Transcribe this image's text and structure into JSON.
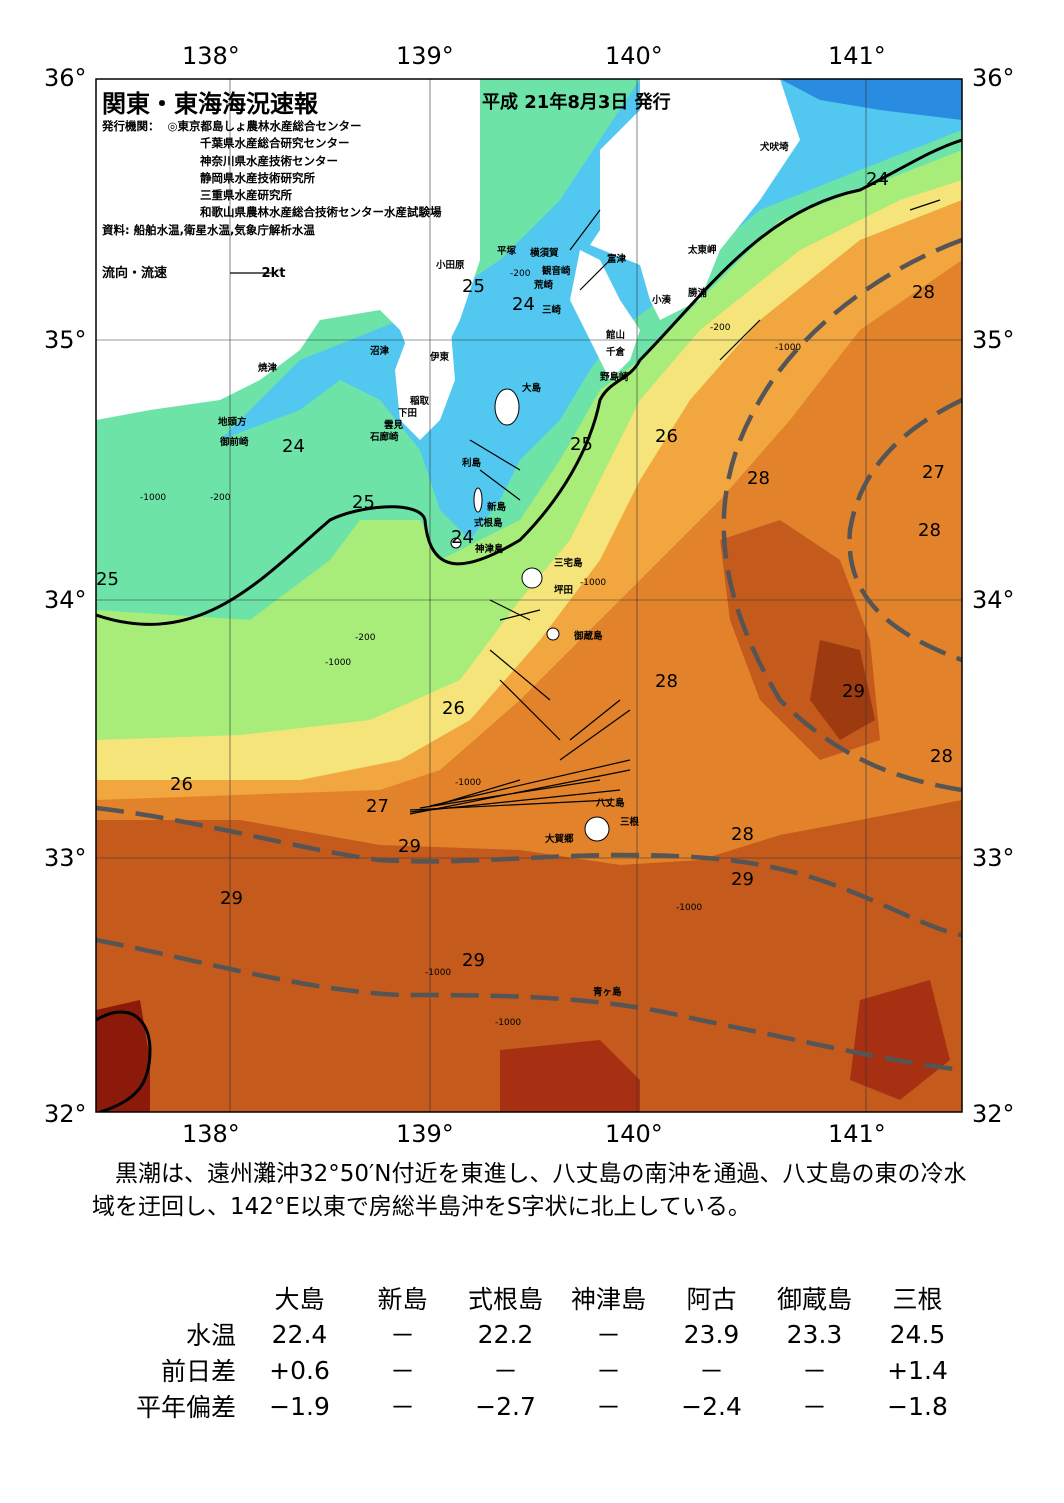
{
  "title": "関東・東海海況速報",
  "date": "平成 21年8月3日 発行",
  "issuers_label": "発行機関：",
  "issuers": [
    "◎東京都島しょ農林水産総合センター",
    "千葉県水産総合研究センター",
    "神奈川県水産技術センター",
    "静岡県水産技術研究所",
    "三重県水産研究所",
    "和歌山県農林水産総合技術センター水産試験場"
  ],
  "source": "資料: 船舶水温,衛星水温,気象庁解析水温",
  "legend": {
    "label": "流向・流速",
    "scale": "2kt"
  },
  "axes": {
    "lon": [
      "138°",
      "139°",
      "140°",
      "141°"
    ],
    "lat": [
      "36°",
      "35°",
      "34°",
      "33°",
      "32°"
    ]
  },
  "isotherm_labels": [
    "24",
    "24",
    "24",
    "24",
    "25",
    "25",
    "25",
    "25",
    "26",
    "26",
    "26",
    "27",
    "27",
    "28",
    "28",
    "28",
    "28",
    "28",
    "28",
    "29",
    "29",
    "29",
    "29",
    "29"
  ],
  "depth_labels": [
    "-200",
    "-200",
    "-200",
    "-200",
    "-1000",
    "-1000",
    "-1000",
    "-1000",
    "-1000",
    "-1000",
    "-1000",
    "-1000"
  ],
  "place_names": [
    "犬吠埼",
    "太東岬",
    "勝浦",
    "小湊",
    "富津",
    "横須賀",
    "観音崎",
    "平塚",
    "小田原",
    "荒崎",
    "三崎",
    "館山",
    "千倉",
    "野島崎",
    "沼津",
    "伊東",
    "焼津",
    "大島",
    "稲取",
    "下田",
    "雲見",
    "石廊崎",
    "地頭方",
    "御前崎",
    "利島",
    "新島",
    "式根島",
    "神津島",
    "三宅島",
    "坪田",
    "御蔵島",
    "八丈島",
    "三根",
    "大賀郷",
    "青ヶ島"
  ],
  "description": "　黒潮は、遠州灘沖32°50′N付近を東進し、八丈島の南沖を通過、八丈島の東の冷水域を迂回し、142°E以東で房総半島沖をS字状に北上している。",
  "table": {
    "columns": [
      "大島",
      "新島",
      "式根島",
      "神津島",
      "阿古",
      "御蔵島",
      "三根"
    ],
    "rows": [
      {
        "label": "水温",
        "values": [
          "22.4",
          "－",
          "22.2",
          "－",
          "23.9",
          "23.3",
          "24.5"
        ]
      },
      {
        "label": "前日差",
        "values": [
          "+0.6",
          "－",
          "－",
          "－",
          "－",
          "－",
          "+1.4"
        ]
      },
      {
        "label": "平年偏差",
        "values": [
          "−1.9",
          "－",
          "−2.7",
          "－",
          "−2.4",
          "－",
          "−1.8"
        ]
      }
    ]
  },
  "colors": {
    "t24": "#52c8f0",
    "t25": "#6de3a8",
    "t26": "#a8ec7a",
    "t27": "#f5e47a",
    "t28": "#f2a640",
    "t28b": "#e2822a",
    "t29": "#c45a1c",
    "t30": "#8c1a0a",
    "land": "#ffffff",
    "kuroshio": "#555555"
  }
}
